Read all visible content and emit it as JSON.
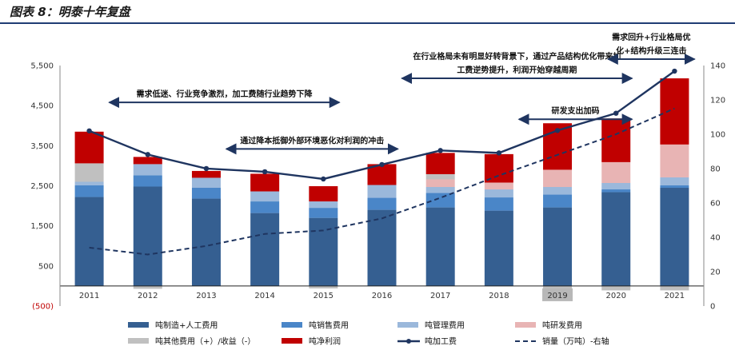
{
  "header": {
    "title": "图表 8：明泰十年复盘"
  },
  "colors": {
    "manufacturing": "#355f91",
    "sales": "#4a86c8",
    "admin": "#9bb8db",
    "rnd": "#e8b4b4",
    "other": "#c0c0c0",
    "profit": "#c00000",
    "fee_line": "#1f3560",
    "volume_line": "#1f3560"
  },
  "chart_data": {
    "type": "bar",
    "categories": [
      "2011",
      "2012",
      "2013",
      "2014",
      "2015",
      "2016",
      "2017",
      "2018",
      "2019",
      "2020",
      "2021"
    ],
    "left_axis": {
      "ticks": [
        "(500)",
        "500",
        "1,500",
        "2,500",
        "3,500",
        "4,500",
        "5,500"
      ],
      "tick_values": [
        -500,
        500,
        1500,
        2500,
        3500,
        4500,
        5500
      ],
      "range": [
        -500,
        5500
      ]
    },
    "right_axis": {
      "ticks": [
        "0",
        "20",
        "40",
        "60",
        "80",
        "100",
        "120",
        "140"
      ],
      "range": [
        0,
        140
      ]
    },
    "series": [
      {
        "name": "吨制造+人工费用",
        "key": "manufacturing",
        "values": [
          2220,
          2480,
          2180,
          1820,
          1700,
          1900,
          1960,
          1880,
          1960,
          2340,
          2450
        ]
      },
      {
        "name": "吨销售费用",
        "key": "sales",
        "values": [
          290,
          280,
          270,
          290,
          250,
          300,
          360,
          330,
          320,
          70,
          60
        ]
      },
      {
        "name": "吨管理费用",
        "key": "admin",
        "values": [
          90,
          280,
          250,
          250,
          160,
          320,
          150,
          200,
          190,
          160,
          200
        ]
      },
      {
        "name": "吨研发费用",
        "key": "rnd",
        "values": [
          0,
          0,
          0,
          0,
          0,
          0,
          190,
          170,
          430,
          520,
          820
        ]
      },
      {
        "name": "吨其他费用（+）/收益（-）",
        "key": "other",
        "values": [
          460,
          0,
          0,
          0,
          0,
          0,
          130,
          0,
          0,
          0,
          0
        ]
      },
      {
        "name": "吨净利润",
        "key": "profit",
        "values": [
          790,
          180,
          170,
          440,
          380,
          520,
          530,
          710,
          1160,
          1090,
          1650
        ]
      },
      {
        "name": "吨加工费",
        "key": "fee",
        "type": "line",
        "axis": "left",
        "values": [
          3870,
          3280,
          2930,
          2850,
          2670,
          3030,
          3380,
          3320,
          3880,
          4310,
          5360
        ]
      },
      {
        "name": "销量（万吨）-右轴",
        "key": "volume",
        "type": "line",
        "axis": "right",
        "dashed": true,
        "values": [
          34,
          30,
          35,
          42,
          44,
          51,
          63,
          76,
          88,
          100,
          115
        ]
      }
    ],
    "negatives": [
      {
        "year": "2012",
        "value": -70,
        "key": "other"
      },
      {
        "year": "2015",
        "value": -60,
        "key": "other"
      },
      {
        "year": "2019",
        "value": -350,
        "key": "other"
      },
      {
        "year": "2020",
        "value": -110,
        "key": "other"
      },
      {
        "year": "2021",
        "value": -110,
        "key": "other"
      }
    ],
    "annotations": [
      {
        "text": "需求低迷、行业竞争激烈，加工费随行业趋势下降",
        "from": "2011",
        "to": "2015",
        "fee_y": 4580
      },
      {
        "text": "通过降本抵御外部环境恶化对利润的冲击",
        "from": "2013",
        "to": "2016",
        "fee_y": 3420
      },
      {
        "text": "在行业格局未有明显好转背景下，通过产品结构优化带来加",
        "from": "2016",
        "to": "2020",
        "fee_y": 5180
      },
      {
        "text": "工费逆势提升，利润开始穿越周期",
        "from": "2016",
        "to": "2020",
        "fee_y": 5180
      },
      {
        "text": "研发支出加码",
        "from": "2018",
        "to": "2020",
        "fee_y": 4160
      },
      {
        "text": "需求回升+行业格局优",
        "from": "2020",
        "to": "2021",
        "fee_y": 5660
      },
      {
        "text": "化+结构升级三连击",
        "from": "2020",
        "to": "2021",
        "fee_y": 5660
      }
    ],
    "legend": [
      {
        "label": "吨制造+人工费用",
        "key": "manufacturing",
        "shape": "rect"
      },
      {
        "label": "吨销售费用",
        "key": "sales",
        "shape": "rect"
      },
      {
        "label": "吨管理费用",
        "key": "admin",
        "shape": "rect"
      },
      {
        "label": "吨研发费用",
        "key": "rnd",
        "shape": "rect"
      },
      {
        "label": "吨其他费用（+）/收益（-）",
        "key": "other",
        "shape": "rect"
      },
      {
        "label": "吨净利润",
        "key": "profit",
        "shape": "rect"
      },
      {
        "label": "吨加工费",
        "key": "fee",
        "shape": "line-marker"
      },
      {
        "label": "销量（万吨）-右轴",
        "key": "volume",
        "shape": "dashed"
      }
    ],
    "legend_position": "bottom",
    "grid": false
  }
}
